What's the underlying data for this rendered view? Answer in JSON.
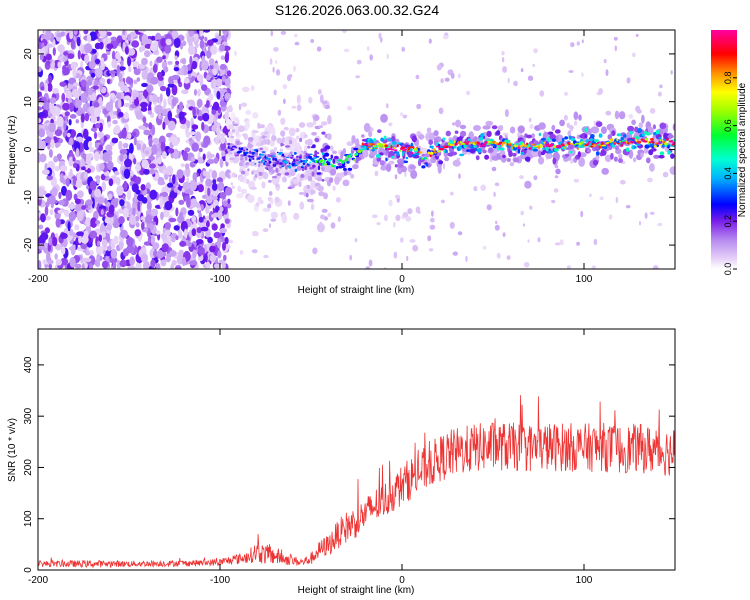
{
  "title": "S126.2026.063.00.32.G24",
  "chart_data": [
    {
      "type": "heatmap",
      "title": "S126.2026.063.00.32.G24",
      "xlabel": "Height of straight line (km)",
      "ylabel": "Frequency (Hz)",
      "xlim": [
        -200,
        150
      ],
      "ylim": [
        -25,
        25
      ],
      "xticks": [
        -200,
        -100,
        0,
        100
      ],
      "yticks": [
        -20,
        -10,
        0,
        10,
        20
      ],
      "colorbar": {
        "label": "Normalized spectral amplitude",
        "range": [
          0,
          1
        ],
        "ticks": [
          "0.0",
          "0.2",
          "0.4",
          "0.6",
          "0.8"
        ],
        "tick_values": [
          0.0,
          0.2,
          0.4,
          0.6,
          0.8
        ]
      },
      "noise_region_x": [
        -200,
        -95
      ],
      "signal_track": {
        "x": [
          -95,
          -85,
          -75,
          -65,
          -55,
          -50,
          -45,
          -40,
          -35,
          -30,
          -25,
          -20,
          -10,
          0,
          5,
          10,
          12,
          15,
          20,
          25,
          30,
          40,
          50,
          60,
          70,
          80,
          90,
          100,
          110,
          120,
          130,
          140,
          150
        ],
        "y": [
          1,
          -1,
          -2,
          -2,
          -3,
          -2,
          -2,
          -3,
          -3,
          -2,
          -1,
          1,
          0.5,
          0,
          0,
          0,
          -3,
          -1,
          0,
          1,
          1.5,
          1.2,
          1.2,
          0.8,
          0.8,
          1,
          0.7,
          1.2,
          1,
          1.3,
          1.8,
          1.5,
          1.8
        ],
        "amplitude": [
          0.2,
          0.25,
          0.3,
          0.3,
          0.3,
          0.4,
          0.5,
          0.5,
          0.5,
          0.6,
          0.7,
          0.9,
          0.9,
          0.9,
          0.9,
          0.85,
          0.3,
          0.8,
          0.9,
          0.9,
          0.9,
          0.9,
          0.9,
          0.9,
          0.9,
          0.9,
          0.9,
          0.9,
          0.9,
          0.9,
          0.9,
          0.9,
          0.9
        ]
      }
    },
    {
      "type": "line",
      "xlabel": "Height of straight line (km)",
      "ylabel": "SNR (10 * v/v)",
      "xlim": [
        -200,
        150
      ],
      "ylim": [
        0,
        470
      ],
      "xticks": [
        -200,
        -100,
        0,
        100
      ],
      "yticks": [
        0,
        100,
        200,
        300,
        400
      ],
      "color": "#ee3333",
      "series": [
        {
          "name": "SNR",
          "x": [
            -200,
            -170,
            -150,
            -120,
            -100,
            -85,
            -80,
            -75,
            -70,
            -65,
            -60,
            -55,
            -50,
            -45,
            -40,
            -35,
            -30,
            -25,
            -20,
            -15,
            -10,
            -5,
            0,
            5,
            10,
            15,
            20,
            25,
            30,
            40,
            50,
            60,
            70,
            80,
            90,
            100,
            110,
            120,
            130,
            140,
            150
          ],
          "mean": [
            12,
            12,
            12,
            13,
            15,
            25,
            35,
            30,
            28,
            22,
            18,
            15,
            22,
            40,
            50,
            70,
            85,
            95,
            110,
            125,
            135,
            150,
            165,
            180,
            190,
            205,
            215,
            225,
            230,
            238,
            242,
            240,
            238,
            240,
            240,
            238,
            240,
            235,
            238,
            232,
            230
          ],
          "noise_amp": [
            6,
            7,
            6,
            6,
            7,
            12,
            20,
            20,
            18,
            12,
            10,
            8,
            12,
            18,
            22,
            28,
            32,
            32,
            32,
            35,
            35,
            38,
            40,
            42,
            42,
            45,
            45,
            48,
            48,
            48,
            48,
            48,
            48,
            48,
            48,
            48,
            48,
            48,
            48,
            48,
            48
          ]
        }
      ]
    }
  ]
}
